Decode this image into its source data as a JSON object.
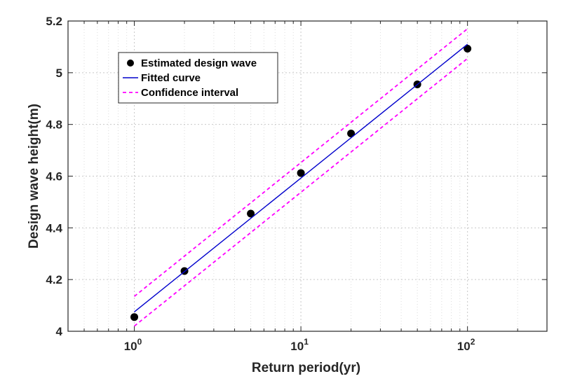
{
  "chart_data": {
    "type": "scatter",
    "title": "",
    "xlabel": "Return period(yr)",
    "ylabel": "Design wave height(m)",
    "x_scale": "log",
    "xlim": [
      0.4,
      300
    ],
    "ylim": [
      4.0,
      5.2
    ],
    "x_ticks": [
      {
        "value": 1,
        "base": "10",
        "exp": "0"
      },
      {
        "value": 10,
        "base": "10",
        "exp": "1"
      },
      {
        "value": 100,
        "base": "10",
        "exp": "2"
      }
    ],
    "y_ticks": [
      {
        "value": 4.0,
        "label": "4"
      },
      {
        "value": 4.2,
        "label": "4.2"
      },
      {
        "value": 4.4,
        "label": "4.4"
      },
      {
        "value": 4.6,
        "label": "4.6"
      },
      {
        "value": 4.8,
        "label": "4.8"
      },
      {
        "value": 5.0,
        "label": "5"
      },
      {
        "value": 5.2,
        "label": "5.2"
      }
    ],
    "grid": true,
    "legend_position": "top-left",
    "series": [
      {
        "name": "Estimated design wave",
        "kind": "points",
        "color": "#000000",
        "x": [
          1,
          2,
          5,
          10,
          20,
          50,
          100
        ],
        "y": [
          4.055,
          4.233,
          4.455,
          4.612,
          4.765,
          4.955,
          5.093
        ]
      },
      {
        "name": "Fitted curve",
        "kind": "line",
        "color": "#0000cc",
        "x": [
          1,
          100
        ],
        "y": [
          4.075,
          5.11
        ]
      },
      {
        "name": "Confidence interval",
        "kind": "dashed",
        "color": "#ff00ff",
        "x": [
          1,
          100
        ],
        "y": [
          4.135,
          5.17
        ]
      },
      {
        "name": "",
        "kind": "dashed",
        "color": "#ff00ff",
        "x": [
          1,
          100
        ],
        "y": [
          4.02,
          5.055
        ]
      }
    ],
    "legend": [
      {
        "label": "Estimated design wave",
        "kind": "points",
        "color": "#000000"
      },
      {
        "label": "Fitted curve",
        "kind": "line",
        "color": "#0000cc"
      },
      {
        "label": "Confidence interval",
        "kind": "dashed",
        "color": "#ff00ff"
      }
    ]
  }
}
